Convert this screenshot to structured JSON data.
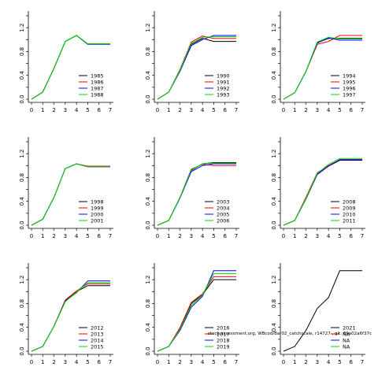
{
  "chart_data": [
    {
      "type": "line",
      "grid": false,
      "legend": "bottom-right",
      "x": [
        0,
        1,
        2,
        3,
        4,
        5,
        6,
        7
      ],
      "xlim": [
        0,
        7
      ],
      "ylim": [
        0,
        1.4
      ],
      "xticks": [
        "0",
        "1",
        "2",
        "3",
        "4",
        "5",
        "6",
        "7"
      ],
      "yticks": [
        "0.0",
        "0.4",
        "0.8",
        "1.2"
      ],
      "series": [
        {
          "name": "1985",
          "color": "#000000",
          "values": [
            0,
            0.12,
            0.52,
            0.97,
            1.07,
            0.93,
            0.93,
            0.93
          ]
        },
        {
          "name": "1986",
          "color": "#ff0000",
          "values": [
            0,
            0.12,
            0.52,
            0.97,
            1.07,
            0.93,
            0.93,
            0.93
          ]
        },
        {
          "name": "1987",
          "color": "#0000ff",
          "values": [
            0,
            0.12,
            0.52,
            0.97,
            1.07,
            0.92,
            0.92,
            0.92
          ]
        },
        {
          "name": "1988",
          "color": "#00dd00",
          "values": [
            0,
            0.12,
            0.52,
            0.97,
            1.07,
            0.93,
            0.93,
            0.93
          ]
        }
      ]
    },
    {
      "type": "line",
      "grid": false,
      "legend": "bottom-right",
      "x": [
        0,
        1,
        2,
        3,
        4,
        5,
        6,
        7
      ],
      "xlim": [
        0,
        7
      ],
      "ylim": [
        0,
        1.4
      ],
      "xticks": [
        "0",
        "1",
        "2",
        "3",
        "4",
        "5",
        "6",
        "7"
      ],
      "yticks": [
        "0.0",
        "0.4",
        "0.8",
        "1.2"
      ],
      "series": [
        {
          "name": "1990",
          "color": "#000000",
          "values": [
            0,
            0.12,
            0.48,
            0.92,
            1.02,
            0.97,
            0.97,
            0.97
          ]
        },
        {
          "name": "1991",
          "color": "#ff0000",
          "values": [
            0,
            0.12,
            0.5,
            0.96,
            1.06,
            1.02,
            1.02,
            1.02
          ]
        },
        {
          "name": "1992",
          "color": "#0000ff",
          "values": [
            0,
            0.12,
            0.47,
            0.9,
            1.0,
            1.07,
            1.07,
            1.07
          ]
        },
        {
          "name": "1993",
          "color": "#00dd00",
          "values": [
            0,
            0.12,
            0.49,
            0.94,
            1.04,
            1.05,
            1.05,
            1.05
          ]
        }
      ]
    },
    {
      "type": "line",
      "grid": false,
      "legend": "bottom-right",
      "x": [
        0,
        1,
        2,
        3,
        4,
        5,
        6,
        7
      ],
      "xlim": [
        0,
        7
      ],
      "ylim": [
        0,
        1.4
      ],
      "xticks": [
        "0",
        "1",
        "2",
        "3",
        "4",
        "5",
        "6",
        "7"
      ],
      "yticks": [
        "0.0",
        "0.4",
        "0.8",
        "1.2"
      ],
      "series": [
        {
          "name": "1994",
          "color": "#000000",
          "values": [
            0,
            0.11,
            0.47,
            0.95,
            1.02,
            1.02,
            1.02,
            1.02
          ]
        },
        {
          "name": "1995",
          "color": "#ff0000",
          "values": [
            0,
            0.11,
            0.47,
            0.92,
            0.97,
            1.07,
            1.07,
            1.07
          ]
        },
        {
          "name": "1996",
          "color": "#0000ff",
          "values": [
            0,
            0.11,
            0.47,
            0.94,
            1.03,
            0.99,
            0.99,
            0.99
          ]
        },
        {
          "name": "1997",
          "color": "#00dd00",
          "values": [
            0,
            0.11,
            0.47,
            0.96,
            1.04,
            1.01,
            1.01,
            1.01
          ]
        }
      ]
    },
    {
      "type": "line",
      "grid": false,
      "legend": "bottom-right",
      "x": [
        0,
        1,
        2,
        3,
        4,
        5,
        6,
        7
      ],
      "xlim": [
        0,
        7
      ],
      "ylim": [
        0,
        1.4
      ],
      "xticks": [
        "0",
        "1",
        "2",
        "3",
        "4",
        "5",
        "6",
        "7"
      ],
      "yticks": [
        "0.0",
        "0.4",
        "0.8",
        "1.2"
      ],
      "series": [
        {
          "name": "1998",
          "color": "#000000",
          "values": [
            0,
            0.1,
            0.47,
            0.95,
            1.03,
            0.98,
            0.98,
            0.98
          ]
        },
        {
          "name": "1999",
          "color": "#ff0000",
          "values": [
            0,
            0.1,
            0.47,
            0.95,
            1.03,
            0.99,
            0.99,
            0.99
          ]
        },
        {
          "name": "2000",
          "color": "#0000ff",
          "values": [
            0,
            0.1,
            0.47,
            0.95,
            1.03,
            0.98,
            0.98,
            0.98
          ]
        },
        {
          "name": "2001",
          "color": "#00dd00",
          "values": [
            0,
            0.1,
            0.47,
            0.95,
            1.03,
            0.98,
            0.98,
            0.98
          ]
        }
      ]
    },
    {
      "type": "line",
      "grid": false,
      "legend": "bottom-right",
      "x": [
        0,
        1,
        2,
        3,
        4,
        5,
        6,
        7
      ],
      "xlim": [
        0,
        7
      ],
      "ylim": [
        0,
        1.4
      ],
      "xticks": [
        "0",
        "1",
        "2",
        "3",
        "4",
        "5",
        "6",
        "7"
      ],
      "yticks": [
        "0.0",
        "0.4",
        "0.8",
        "1.2"
      ],
      "series": [
        {
          "name": "2003",
          "color": "#000000",
          "values": [
            0,
            0.08,
            0.46,
            0.92,
            1.03,
            1.05,
            1.05,
            1.05
          ]
        },
        {
          "name": "2004",
          "color": "#ff0000",
          "values": [
            0,
            0.08,
            0.47,
            0.94,
            1.02,
            1.0,
            1.0,
            1.0
          ]
        },
        {
          "name": "2005",
          "color": "#0000ff",
          "values": [
            0,
            0.08,
            0.46,
            0.9,
            1.0,
            1.03,
            1.03,
            1.03
          ]
        },
        {
          "name": "2006",
          "color": "#00dd00",
          "values": [
            0,
            0.08,
            0.47,
            0.93,
            1.03,
            1.04,
            1.04,
            1.04
          ]
        }
      ]
    },
    {
      "type": "line",
      "grid": false,
      "legend": "bottom-right",
      "x": [
        0,
        1,
        2,
        3,
        4,
        5,
        6,
        7
      ],
      "xlim": [
        0,
        7
      ],
      "ylim": [
        0,
        1.4
      ],
      "xticks": [
        "0",
        "1",
        "2",
        "3",
        "4",
        "5",
        "6",
        "7"
      ],
      "yticks": [
        "0.0",
        "0.4",
        "0.8",
        "1.2"
      ],
      "series": [
        {
          "name": "2008",
          "color": "#000000",
          "values": [
            0,
            0.08,
            0.45,
            0.86,
            0.99,
            1.09,
            1.09,
            1.09
          ]
        },
        {
          "name": "2009",
          "color": "#ff0000",
          "values": [
            0,
            0.08,
            0.47,
            0.88,
            1.0,
            1.1,
            1.1,
            1.1
          ]
        },
        {
          "name": "2010",
          "color": "#0000ff",
          "values": [
            0,
            0.08,
            0.44,
            0.85,
            0.99,
            1.1,
            1.1,
            1.1
          ]
        },
        {
          "name": "2011",
          "color": "#00dd00",
          "values": [
            0,
            0.08,
            0.45,
            0.87,
            1.02,
            1.12,
            1.12,
            1.12
          ]
        }
      ]
    },
    {
      "type": "line",
      "grid": false,
      "legend": "bottom-right",
      "x": [
        0,
        1,
        2,
        3,
        4,
        5,
        6,
        7
      ],
      "xlim": [
        0,
        7
      ],
      "ylim": [
        0,
        1.4
      ],
      "xticks": [
        "0",
        "1",
        "2",
        "3",
        "4",
        "5",
        "6",
        "7"
      ],
      "yticks": [
        "0.0",
        "0.4",
        "0.8",
        "1.2"
      ],
      "series": [
        {
          "name": "2012",
          "color": "#000000",
          "values": [
            0,
            0.08,
            0.42,
            0.85,
            1.0,
            1.1,
            1.1,
            1.1
          ]
        },
        {
          "name": "2013",
          "color": "#ff0000",
          "values": [
            0,
            0.08,
            0.42,
            0.86,
            1.01,
            1.13,
            1.13,
            1.13
          ]
        },
        {
          "name": "2014",
          "color": "#0000ff",
          "values": [
            0,
            0.08,
            0.42,
            0.84,
            0.98,
            1.18,
            1.18,
            1.18
          ]
        },
        {
          "name": "2015",
          "color": "#00dd00",
          "values": [
            0,
            0.08,
            0.42,
            0.83,
            0.99,
            1.15,
            1.15,
            1.15
          ]
        }
      ]
    },
    {
      "type": "line",
      "grid": false,
      "legend": "bottom-right",
      "x": [
        0,
        1,
        2,
        3,
        4,
        5,
        6,
        7
      ],
      "xlim": [
        0,
        7
      ],
      "ylim": [
        0,
        1.4
      ],
      "xticks": [
        "0",
        "1",
        "2",
        "3",
        "4",
        "5",
        "6",
        "7"
      ],
      "yticks": [
        "0.0",
        "0.4",
        "0.8",
        "1.2"
      ],
      "series": [
        {
          "name": "2016",
          "color": "#000000",
          "values": [
            0,
            0.08,
            0.38,
            0.8,
            0.95,
            1.2,
            1.2,
            1.2
          ]
        },
        {
          "name": "2017",
          "color": "#ff0000",
          "values": [
            0,
            0.08,
            0.4,
            0.82,
            0.96,
            1.25,
            1.25,
            1.25
          ]
        },
        {
          "name": "2018",
          "color": "#0000ff",
          "values": [
            0,
            0.08,
            0.35,
            0.74,
            0.92,
            1.35,
            1.35,
            1.35
          ]
        },
        {
          "name": "2019",
          "color": "#00dd00",
          "values": [
            0,
            0.08,
            0.37,
            0.77,
            0.94,
            1.3,
            1.3,
            1.3
          ]
        }
      ]
    },
    {
      "type": "line",
      "grid": false,
      "legend": "bottom-right",
      "x": [
        0,
        1,
        2,
        3,
        4,
        5,
        6,
        7
      ],
      "xlim": [
        0,
        7
      ],
      "ylim": [
        0,
        1.4
      ],
      "xticks": [
        "0",
        "1",
        "2",
        "3",
        "4",
        "5",
        "6",
        "7"
      ],
      "yticks": [
        "0.0",
        "0.4",
        "0.8",
        "1.2"
      ],
      "annotation": "stock.assessment.org, WBcod/Bar02_catchscale, r14727 , git: 69a02a6f37c",
      "series": [
        {
          "name": "2021",
          "color": "#000000",
          "values": [
            0,
            0.08,
            0.35,
            0.72,
            0.9,
            1.35,
            1.35,
            1.35
          ]
        },
        {
          "name": "NA",
          "color": "#ff0000",
          "values": null
        },
        {
          "name": "NA",
          "color": "#0000ff",
          "values": null
        },
        {
          "name": "NA",
          "color": "#00dd00",
          "values": null
        }
      ]
    }
  ]
}
